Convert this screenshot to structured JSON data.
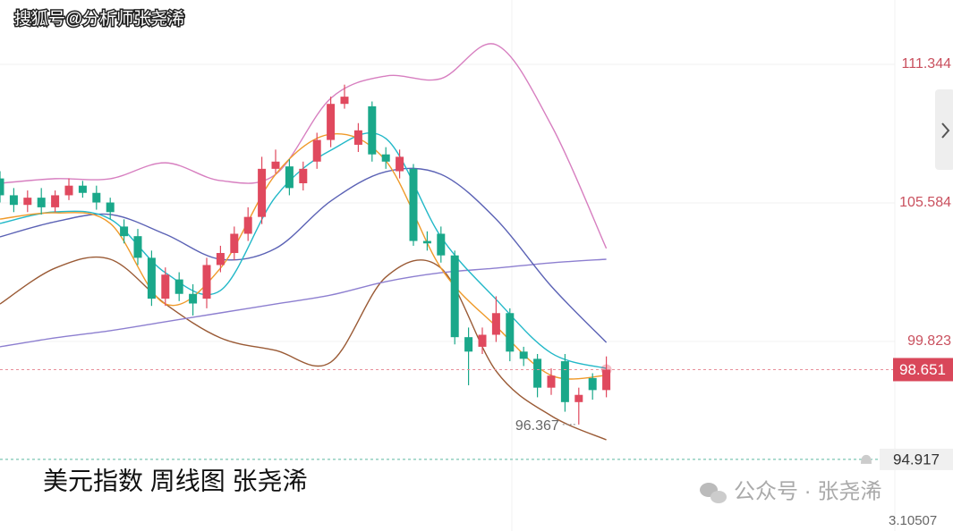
{
  "watermark": "搜狐号@分析师张尧浠",
  "footer_watermark": "公众号 · 张尧浠",
  "corner_text": "3.10507",
  "chart_data": {
    "type": "candlestick",
    "title": "美元指数 周线图 张尧浠",
    "categories": [
      null,
      null,
      null,
      null,
      null,
      null,
      null,
      null,
      null,
      null,
      null,
      null,
      null,
      null,
      null,
      null,
      null,
      null,
      null,
      null,
      null,
      null,
      null,
      null,
      null,
      null,
      null,
      null,
      null,
      null,
      null,
      null,
      null,
      null,
      null,
      null,
      null,
      null,
      null,
      null,
      null,
      null,
      null,
      null,
      null
    ],
    "open": [
      106.6,
      105.9,
      105.5,
      105.8,
      105.4,
      105.9,
      106.3,
      106.0,
      105.6,
      104.6,
      104.2,
      103.3,
      101.6,
      102.4,
      101.8,
      101.6,
      103.0,
      103.5,
      104.3,
      105.0,
      107.0,
      107.1,
      106.4,
      107.3,
      108.2,
      109.7,
      108.0,
      109.6,
      107.6,
      106.9,
      107.0,
      104.0,
      104.3,
      103.4,
      100.0,
      99.6,
      100.1,
      101.0,
      99.4,
      99.1,
      97.9,
      99.0,
      97.3,
      98.3,
      97.8
    ],
    "high": [
      106.9,
      106.2,
      106.1,
      106.2,
      106.1,
      106.6,
      106.5,
      106.3,
      105.8,
      104.9,
      104.5,
      103.6,
      102.9,
      102.7,
      102.2,
      103.3,
      103.8,
      104.6,
      105.4,
      107.5,
      107.8,
      107.4,
      107.3,
      108.5,
      110.0,
      110.5,
      108.9,
      109.8,
      107.9,
      107.8,
      107.2,
      104.4,
      104.6,
      103.6,
      100.4,
      100.4,
      101.7,
      101.2,
      99.6,
      99.3,
      98.7,
      99.3,
      97.9,
      98.5,
      99.2
    ],
    "low": [
      105.6,
      105.2,
      105.2,
      105.1,
      105.2,
      105.7,
      105.8,
      105.3,
      104.9,
      103.9,
      103.0,
      101.3,
      101.3,
      101.5,
      100.9,
      101.2,
      102.7,
      103.2,
      104.0,
      104.7,
      106.8,
      105.9,
      106.1,
      107.0,
      107.9,
      109.5,
      107.7,
      107.3,
      107.0,
      106.6,
      103.8,
      103.6,
      103.1,
      99.7,
      98.0,
      99.3,
      99.8,
      99.0,
      98.8,
      97.5,
      97.6,
      96.9,
      96.367,
      97.4,
      97.5
    ],
    "close": [
      105.9,
      105.5,
      105.8,
      105.4,
      105.9,
      106.3,
      106.0,
      105.6,
      105.2,
      104.2,
      103.3,
      101.6,
      102.6,
      101.8,
      101.4,
      103.0,
      103.5,
      104.3,
      105.0,
      107.0,
      107.3,
      106.2,
      107.0,
      108.2,
      109.7,
      110.0,
      108.6,
      107.6,
      107.3,
      107.5,
      104.0,
      103.9,
      103.4,
      100.0,
      99.4,
      100.1,
      101.0,
      99.4,
      99.1,
      97.9,
      98.4,
      97.3,
      97.6,
      97.8,
      98.651
    ],
    "up_color": "#e0495e",
    "down_color": "#1aa88a",
    "overlays": [
      {
        "color": "#d77fc0",
        "x": [
          0,
          4,
          8,
          12,
          16,
          20,
          24,
          28,
          32,
          36,
          40,
          44
        ],
        "values": [
          106.4,
          106.59,
          106.59,
          107.25,
          106.51,
          106.77,
          109.93,
          110.86,
          110.75,
          112.16,
          108.82,
          103.69
        ]
      },
      {
        "color": "#9a5a35",
        "x": [
          0,
          4,
          8,
          12,
          16,
          20,
          24,
          28,
          32,
          36,
          40,
          44
        ],
        "values": [
          101.38,
          102.87,
          103.24,
          101.38,
          99.97,
          99.45,
          98.96,
          102.5,
          102.87,
          98.59,
          96.73,
          95.73
        ]
      },
      {
        "color": "#8d7fd0",
        "x": [
          0,
          4,
          8,
          12,
          16,
          20,
          24,
          28,
          32,
          36,
          40,
          44
        ],
        "values": [
          99.6,
          99.97,
          100.27,
          100.64,
          101.01,
          101.38,
          101.75,
          102.31,
          102.68,
          102.87,
          103.09,
          103.24
        ]
      },
      {
        "color": "#5b62b5",
        "x": [
          0,
          4,
          8,
          12,
          16,
          20,
          24,
          28,
          32,
          36,
          40,
          44
        ],
        "values": [
          104.17,
          104.8,
          105.1,
          104.28,
          103.24,
          103.69,
          105.66,
          106.88,
          106.77,
          104.91,
          102.12,
          99.78
        ]
      },
      {
        "color": "#22b8c8",
        "x": [
          0,
          4,
          8,
          12,
          16,
          20,
          24,
          28,
          32,
          36,
          40,
          44
        ],
        "values": [
          104.73,
          105.21,
          104.91,
          102.68,
          101.94,
          105.84,
          107.77,
          108.26,
          104.17,
          101.57,
          99.34,
          98.7
        ]
      },
      {
        "color": "#ef9a2a",
        "x": [
          0,
          4,
          8,
          12,
          16,
          20,
          24,
          28,
          32,
          36,
          40,
          44
        ],
        "values": [
          104.91,
          105.17,
          104.73,
          101.38,
          102.87,
          106.77,
          108.44,
          107.33,
          102.87,
          100.45,
          98.41,
          98.41
        ]
      }
    ],
    "ylim": [
      91.94,
      114.02
    ],
    "yticks": [
      111.344,
      105.584,
      99.823
    ],
    "grid": true,
    "last_price": 98.651,
    "price_line": 94.917,
    "low_annotation": {
      "index": 42,
      "value": 96.367
    }
  }
}
